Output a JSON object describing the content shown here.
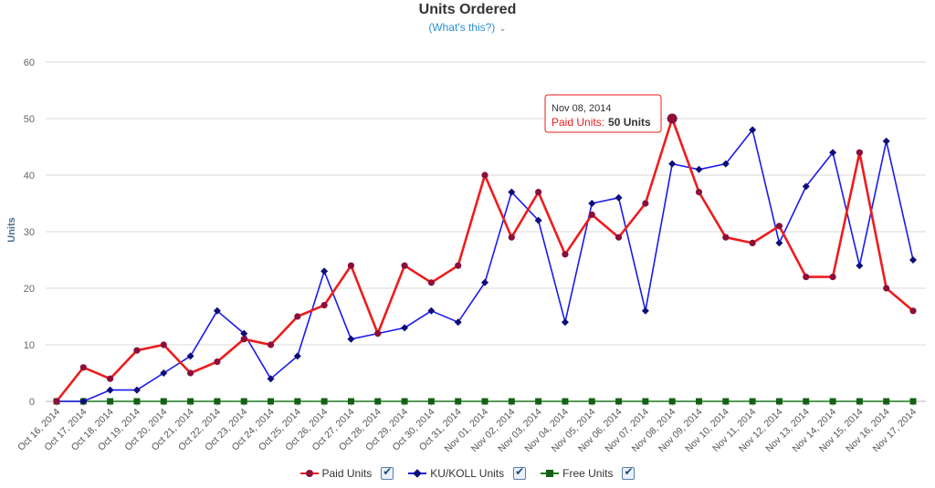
{
  "header": {
    "title": "Units Ordered",
    "whats_this": "(What's this?)"
  },
  "tooltip": {
    "date": "Nov 08, 2014",
    "series_label": "Paid Units:",
    "value_label": "50 Units"
  },
  "colors": {
    "paid": "#ee1c1c",
    "paid_marker": "#8b0f3a",
    "ku": "#1a1aee",
    "ku_marker": "#0d0d7a",
    "free": "#1e7a1e",
    "free_marker": "#146014"
  },
  "chart_data": {
    "type": "line",
    "title": "Units Ordered",
    "ylabel": "Units",
    "xlabel": "",
    "ylim": [
      0,
      60
    ],
    "yticks": [
      0,
      10,
      20,
      30,
      40,
      50,
      60
    ],
    "grid": true,
    "legend": "bottom",
    "categories": [
      "Oct 16, 2014",
      "Oct 17, 2014",
      "Oct 18, 2014",
      "Oct 19, 2014",
      "Oct 20, 2014",
      "Oct 21, 2014",
      "Oct 22, 2014",
      "Oct 23, 2014",
      "Oct 24, 2014",
      "Oct 25, 2014",
      "Oct 26, 2014",
      "Oct 27, 2014",
      "Oct 28, 2014",
      "Oct 29, 2014",
      "Oct 30, 2014",
      "Oct 31, 2014",
      "Nov 01, 2014",
      "Nov 02, 2014",
      "Nov 03, 2014",
      "Nov 04, 2014",
      "Nov 05, 2014",
      "Nov 06, 2014",
      "Nov 07, 2014",
      "Nov 08, 2014",
      "Nov 09, 2014",
      "Nov 10, 2014",
      "Nov 11, 2014",
      "Nov 12, 2014",
      "Nov 13, 2014",
      "Nov 14, 2014",
      "Nov 15, 2014",
      "Nov 16, 2014",
      "Nov 17, 2014"
    ],
    "series": [
      {
        "name": "Paid Units",
        "values": [
          0,
          6,
          4,
          9,
          10,
          5,
          7,
          11,
          10,
          15,
          17,
          24,
          12,
          24,
          21,
          24,
          40,
          29,
          37,
          26,
          33,
          29,
          35,
          50,
          37,
          29,
          28,
          31,
          22,
          22,
          44,
          20,
          16
        ]
      },
      {
        "name": "KU/KOLL Units",
        "values": [
          0,
          0,
          2,
          2,
          5,
          8,
          16,
          12,
          4,
          8,
          23,
          11,
          12,
          13,
          16,
          14,
          21,
          37,
          32,
          14,
          35,
          36,
          16,
          42,
          41,
          42,
          48,
          28,
          38,
          44,
          24,
          46,
          25
        ]
      },
      {
        "name": "Free Units",
        "values": [
          0,
          0,
          0,
          0,
          0,
          0,
          0,
          0,
          0,
          0,
          0,
          0,
          0,
          0,
          0,
          0,
          0,
          0,
          0,
          0,
          0,
          0,
          0,
          0,
          0,
          0,
          0,
          0,
          0,
          0,
          0,
          0,
          0
        ]
      }
    ],
    "highlight": {
      "series": "Paid Units",
      "category": "Nov 08, 2014",
      "value": 50
    }
  }
}
